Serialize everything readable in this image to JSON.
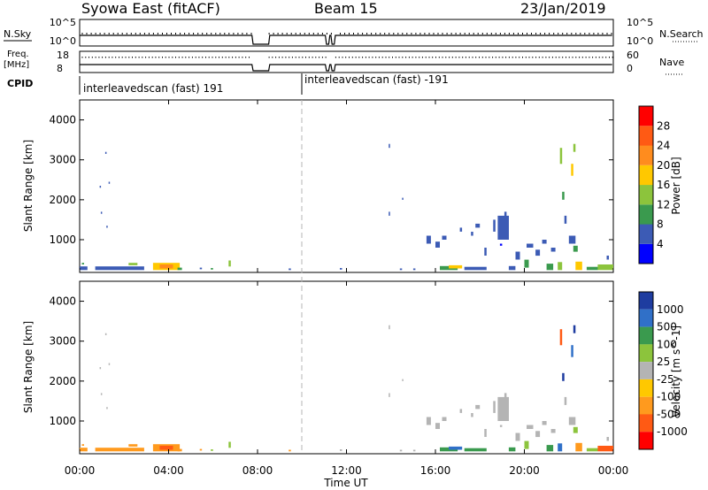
{
  "header": {
    "station": "Syowa East (fitACF)",
    "beam": "Beam 15",
    "date": "23/Jan/2019"
  },
  "strip_labels": {
    "nsky": "N.Sky",
    "nsearch": "N.Search",
    "freq_line1": "Freq.",
    "freq_line2": "[MHz]",
    "nave": "Nave",
    "cpid": "CPID",
    "noise_tick_top": "10^5",
    "noise_tick_bottom": "10^0",
    "noise_tick_top_right": "10^5",
    "noise_tick_bottom_right": "10^0",
    "freq_tick_top": "18",
    "freq_tick_bottom": "8",
    "nave_tick_top": "60",
    "nave_tick_bottom": "0"
  },
  "cpid_segments": [
    {
      "label": "interleavedscan (fast) 191",
      "start_hour": 0
    },
    {
      "label": "interleavedscan (fast) -191",
      "start_hour": 10
    }
  ],
  "data_gaps_hours": [
    [
      7.75,
      8.5
    ],
    [
      11.1,
      11.25
    ],
    [
      11.35,
      11.5
    ]
  ],
  "colors": {
    "power": [
      "#0000ff",
      "#3c5bb5",
      "#3a9a4e",
      "#8cc43c",
      "#ffc800",
      "#ff8c1e",
      "#ff5a14",
      "#ff0000"
    ],
    "velocity": [
      "#1e3ca0",
      "#3070c8",
      "#3a9a4e",
      "#8cc43c",
      "#b4b4b4",
      "#ffc800",
      "#ff9a1e",
      "#ff5a14",
      "#ff0000"
    ],
    "gap_line": "#b4b4b4"
  },
  "chart_data": [
    {
      "type": "heatmap",
      "panel": "power",
      "ylabel": "Slant Range [km]",
      "yticks": [
        "1000",
        "2000",
        "3000",
        "4000"
      ],
      "ylim": [
        180,
        4500
      ],
      "xlim": [
        0,
        24
      ],
      "colorbar_label": "Power [dB]",
      "colorbar_ticks": [
        "4",
        "8",
        "12",
        "16",
        "20",
        "24",
        "28"
      ],
      "colorbar_range": [
        0,
        32
      ]
    },
    {
      "type": "heatmap",
      "panel": "velocity",
      "ylabel": "Slant Range [km]",
      "yticks": [
        "1000",
        "2000",
        "3000",
        "4000"
      ],
      "ylim": [
        180,
        4500
      ],
      "xlim": [
        0,
        24
      ],
      "colorbar_label": "Velocity [m s^-1]",
      "colorbar_ticks": [
        "1000",
        "500",
        "100",
        "25",
        "-25",
        "-100",
        "-500",
        "-1000"
      ]
    }
  ],
  "xaxis": {
    "label": "Time UT",
    "ticks": [
      "00:00",
      "04:00",
      "08:00",
      "12:00",
      "16:00",
      "20:00",
      "00:00"
    ]
  },
  "echoes": [
    {
      "t": 0.0,
      "t2": 0.35,
      "r": 240,
      "r2": 330,
      "p": 1,
      "v": 6
    },
    {
      "t": 0.1,
      "t2": 0.2,
      "r": 380,
      "r2": 420,
      "p": 2,
      "v": 6
    },
    {
      "t": 0.9,
      "t2": 0.95,
      "r": 2300,
      "r2": 2350,
      "p": 1,
      "v": 4
    },
    {
      "t": 0.95,
      "t2": 1.0,
      "r": 1650,
      "r2": 1700,
      "p": 1,
      "v": 4
    },
    {
      "t": 1.15,
      "t2": 1.2,
      "r": 3150,
      "r2": 3200,
      "p": 1,
      "v": 4
    },
    {
      "t": 1.3,
      "t2": 1.35,
      "r": 2400,
      "r2": 2450,
      "p": 1,
      "v": 4
    },
    {
      "t": 1.2,
      "t2": 1.25,
      "r": 1300,
      "r2": 1350,
      "p": 1,
      "v": 4
    },
    {
      "t": 0.7,
      "t2": 2.9,
      "r": 240,
      "r2": 330,
      "p": 1,
      "v": 6
    },
    {
      "t": 2.2,
      "t2": 2.6,
      "r": 360,
      "r2": 420,
      "p": 3,
      "v": 6
    },
    {
      "t": 3.3,
      "t2": 4.5,
      "r": 240,
      "r2": 420,
      "p": 4,
      "v": 6
    },
    {
      "t": 3.6,
      "t2": 4.2,
      "r": 280,
      "r2": 380,
      "p": 5,
      "v": 7
    },
    {
      "t": 4.4,
      "t2": 4.6,
      "r": 240,
      "r2": 300,
      "p": 2,
      "v": 6
    },
    {
      "t": 5.4,
      "t2": 5.5,
      "r": 260,
      "r2": 300,
      "p": 1,
      "v": 6
    },
    {
      "t": 5.9,
      "t2": 6.0,
      "r": 250,
      "r2": 290,
      "p": 2,
      "v": 3
    },
    {
      "t": 6.7,
      "t2": 6.8,
      "r": 330,
      "r2": 480,
      "p": 3,
      "v": 3
    },
    {
      "t": 9.4,
      "t2": 9.5,
      "r": 240,
      "r2": 280,
      "p": 1,
      "v": 6
    },
    {
      "t": 11.7,
      "t2": 11.8,
      "r": 250,
      "r2": 290,
      "p": 1,
      "v": 4
    },
    {
      "t": 13.9,
      "t2": 13.95,
      "r": 3300,
      "r2": 3400,
      "p": 1,
      "v": 4
    },
    {
      "t": 13.9,
      "t2": 13.95,
      "r": 1600,
      "r2": 1700,
      "p": 1,
      "v": 4
    },
    {
      "t": 14.5,
      "t2": 14.55,
      "r": 2000,
      "r2": 2050,
      "p": 1,
      "v": 4
    },
    {
      "t": 14.4,
      "t2": 14.5,
      "r": 240,
      "r2": 280,
      "p": 1,
      "v": 4
    },
    {
      "t": 15.0,
      "t2": 15.1,
      "r": 240,
      "r2": 280,
      "p": 1,
      "v": 4
    },
    {
      "t": 15.6,
      "t2": 15.8,
      "r": 900,
      "r2": 1100,
      "p": 1,
      "v": 4
    },
    {
      "t": 16.0,
      "t2": 16.2,
      "r": 800,
      "r2": 950,
      "p": 1,
      "v": 4
    },
    {
      "t": 16.3,
      "t2": 16.5,
      "r": 1000,
      "r2": 1100,
      "p": 1,
      "v": 4
    },
    {
      "t": 16.2,
      "t2": 17.0,
      "r": 240,
      "r2": 340,
      "p": 2,
      "v": 2
    },
    {
      "t": 16.6,
      "t2": 17.2,
      "r": 280,
      "r2": 360,
      "p": 4,
      "v": 1
    },
    {
      "t": 17.1,
      "t2": 17.2,
      "r": 1200,
      "r2": 1300,
      "p": 1,
      "v": 4
    },
    {
      "t": 17.6,
      "t2": 17.7,
      "r": 1100,
      "r2": 1200,
      "p": 1,
      "v": 4
    },
    {
      "t": 17.8,
      "t2": 18.0,
      "r": 1300,
      "r2": 1400,
      "p": 1,
      "v": 4
    },
    {
      "t": 17.3,
      "t2": 18.3,
      "r": 240,
      "r2": 320,
      "p": 1,
      "v": 2
    },
    {
      "t": 18.2,
      "t2": 18.3,
      "r": 600,
      "r2": 800,
      "p": 1,
      "v": 4
    },
    {
      "t": 18.6,
      "t2": 18.7,
      "r": 1200,
      "r2": 1500,
      "p": 1,
      "v": 4
    },
    {
      "t": 18.8,
      "t2": 19.3,
      "r": 1000,
      "r2": 1600,
      "p": 1,
      "v": 4
    },
    {
      "t": 19.1,
      "t2": 19.2,
      "r": 1400,
      "r2": 1700,
      "p": 1,
      "v": 4
    },
    {
      "t": 18.9,
      "t2": 19.0,
      "r": 850,
      "r2": 900,
      "p": 0,
      "v": 4
    },
    {
      "t": 19.3,
      "t2": 19.6,
      "r": 240,
      "r2": 340,
      "p": 1,
      "v": 2
    },
    {
      "t": 19.6,
      "t2": 19.8,
      "r": 500,
      "r2": 700,
      "p": 1,
      "v": 4
    },
    {
      "t": 20.0,
      "t2": 20.2,
      "r": 300,
      "r2": 500,
      "p": 2,
      "v": 3
    },
    {
      "t": 20.1,
      "t2": 20.4,
      "r": 800,
      "r2": 900,
      "p": 1,
      "v": 4
    },
    {
      "t": 20.5,
      "t2": 20.7,
      "r": 600,
      "r2": 750,
      "p": 1,
      "v": 4
    },
    {
      "t": 20.8,
      "t2": 21.0,
      "r": 900,
      "r2": 1000,
      "p": 1,
      "v": 4
    },
    {
      "t": 21.2,
      "t2": 21.4,
      "r": 700,
      "r2": 800,
      "p": 1,
      "v": 4
    },
    {
      "t": 21.0,
      "t2": 21.3,
      "r": 240,
      "r2": 400,
      "p": 2,
      "v": 2
    },
    {
      "t": 21.5,
      "t2": 21.7,
      "r": 240,
      "r2": 440,
      "p": 3,
      "v": 1
    },
    {
      "t": 21.6,
      "t2": 21.7,
      "r": 2900,
      "r2": 3300,
      "p": 3,
      "v": 7
    },
    {
      "t": 21.7,
      "t2": 21.8,
      "r": 2000,
      "r2": 2200,
      "p": 2,
      "v": 0
    },
    {
      "t": 21.8,
      "t2": 21.9,
      "r": 1400,
      "r2": 1600,
      "p": 1,
      "v": 4
    },
    {
      "t": 22.1,
      "t2": 22.2,
      "r": 2600,
      "r2": 2900,
      "p": 4,
      "v": 1
    },
    {
      "t": 22.2,
      "t2": 22.3,
      "r": 3200,
      "r2": 3400,
      "p": 3,
      "v": 0
    },
    {
      "t": 22.0,
      "t2": 22.3,
      "r": 900,
      "r2": 1100,
      "p": 1,
      "v": 4
    },
    {
      "t": 22.2,
      "t2": 22.4,
      "r": 700,
      "r2": 850,
      "p": 2,
      "v": 3
    },
    {
      "t": 22.3,
      "t2": 22.6,
      "r": 240,
      "r2": 450,
      "p": 4,
      "v": 6
    },
    {
      "t": 22.8,
      "t2": 23.3,
      "r": 240,
      "r2": 320,
      "p": 2,
      "v": 3
    },
    {
      "t": 23.3,
      "t2": 24.0,
      "r": 240,
      "r2": 380,
      "p": 3,
      "v": 7
    },
    {
      "t": 23.7,
      "t2": 23.8,
      "r": 500,
      "r2": 600,
      "p": 1,
      "v": 4
    }
  ]
}
